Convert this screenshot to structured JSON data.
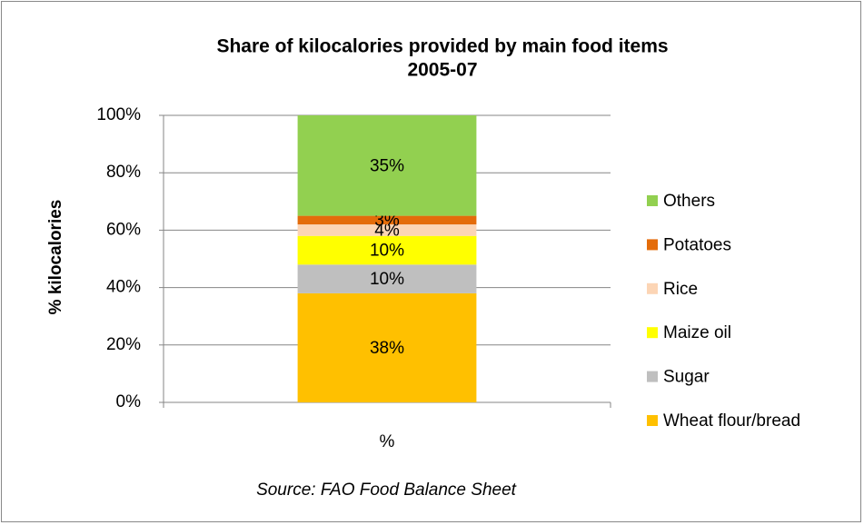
{
  "chart_data": {
    "type": "stacked_bar",
    "title": [
      "Share of kilocalories provided by main food items",
      "2005-07"
    ],
    "categories": [
      "%"
    ],
    "y_label": "% kilocalories",
    "annotation": "Source: FAO Food Balance Sheet",
    "series": [
      {
        "name": "Wheat flour/bread",
        "color": "#ffc000",
        "values": [
          38
        ],
        "value_labels": [
          "38%"
        ]
      },
      {
        "name": "Sugar",
        "color": "#bfbfbf",
        "values": [
          10
        ],
        "value_labels": [
          "10%"
        ]
      },
      {
        "name": "Maize oil",
        "color": "#ffff00",
        "values": [
          10
        ],
        "value_labels": [
          "10%"
        ]
      },
      {
        "name": "Rice",
        "color": "#fcd5b5",
        "values": [
          4
        ],
        "value_labels": [
          "4%"
        ]
      },
      {
        "name": "Potatoes",
        "color": "#e46c0a",
        "values": [
          3
        ],
        "value_labels": [
          "3%"
        ]
      },
      {
        "name": "Others",
        "color": "#92d050",
        "values": [
          35
        ],
        "value_labels": [
          "35%"
        ]
      }
    ],
    "ylim": [
      0,
      100
    ],
    "yticks": [
      {
        "value": 0,
        "label": "0%"
      },
      {
        "value": 20,
        "label": "20%"
      },
      {
        "value": 40,
        "label": "40%"
      },
      {
        "value": 60,
        "label": "60%"
      },
      {
        "value": 80,
        "label": "80%"
      },
      {
        "value": 100,
        "label": "100%"
      }
    ],
    "grid": true,
    "legend": "right"
  }
}
